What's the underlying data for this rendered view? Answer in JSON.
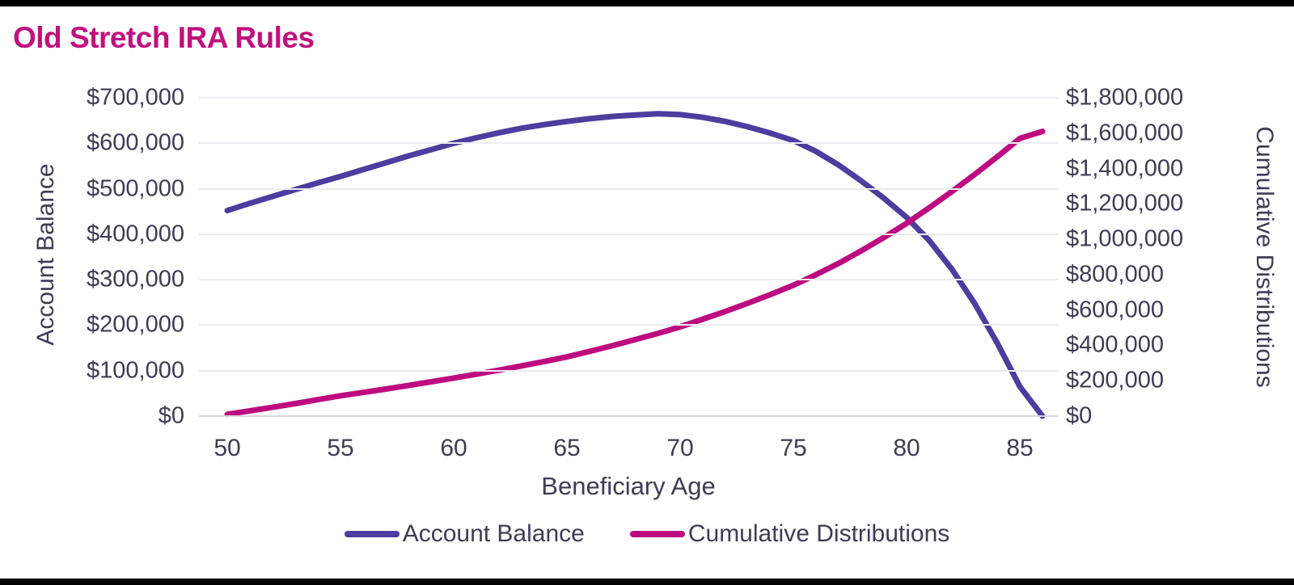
{
  "title": "Old Stretch IRA Rules",
  "colors": {
    "title": "#C0117E",
    "account_balance_line": "#4C3D9E",
    "cumulative_distributions_line": "#BD0C80",
    "axis_text": "#3D3D52",
    "gridline": "#ECEBF1",
    "zero_line": "#D8D8DD",
    "letterbox": "#000000",
    "background": "#FFFFFF"
  },
  "chart_data": {
    "type": "line",
    "title": "Old Stretch IRA Rules",
    "xlabel": "Beneficiary Age",
    "ylabel_left": "Account Balance",
    "ylabel_right": "Cumulative Distributions",
    "grid": "horizontal",
    "legend_position": "bottom",
    "x": [
      50,
      51,
      52,
      53,
      54,
      55,
      56,
      57,
      58,
      59,
      60,
      61,
      62,
      63,
      64,
      65,
      66,
      67,
      68,
      69,
      70,
      71,
      72,
      73,
      74,
      75,
      76,
      77,
      78,
      79,
      80,
      81,
      82,
      83,
      84,
      85,
      86
    ],
    "x_ticks": [
      50,
      55,
      60,
      65,
      70,
      75,
      80,
      85
    ],
    "left_axis": {
      "min": 0,
      "max": 700000,
      "tick_step": 100000,
      "tick_labels": [
        "$0",
        "$100,000",
        "$200,000",
        "$300,000",
        "$400,000",
        "$500,000",
        "$600,000",
        "$700,000"
      ]
    },
    "right_axis": {
      "min": 0,
      "max": 1800000,
      "tick_step": 200000,
      "tick_labels": [
        "$0",
        "$200,000",
        "$400,000",
        "$600,000",
        "$800,000",
        "$1,000,000",
        "$1,200,000",
        "$1,400,000",
        "$1,600,000",
        "$1,800,000"
      ]
    },
    "series": [
      {
        "name": "Account Balance",
        "axis": "left",
        "color": "#4C3D9E",
        "values": [
          452000,
          468000,
          483000,
          498000,
          513000,
          527000,
          542000,
          557000,
          572000,
          586000,
          600000,
          612000,
          623000,
          633000,
          641000,
          648000,
          654000,
          659000,
          662000,
          665000,
          663000,
          657000,
          648000,
          636000,
          622000,
          606000,
          582000,
          552000,
          517000,
          479000,
          437000,
          386000,
          323000,
          248000,
          161000,
          65000,
          0
        ]
      },
      {
        "name": "Cumulative Distributions",
        "axis": "right",
        "color": "#BD0C80",
        "values": [
          10000,
          30000,
          50000,
          71000,
          93000,
          115000,
          134000,
          153000,
          173000,
          194000,
          215000,
          237000,
          260000,
          284000,
          309000,
          335000,
          366000,
          398000,
          432000,
          467000,
          505000,
          548000,
          592000,
          639000,
          688000,
          740000,
          800000,
          864000,
          935000,
          1010000,
          1090000,
          1178000,
          1270000,
          1366000,
          1466000,
          1570000,
          1610000
        ]
      }
    ]
  },
  "legend": {
    "items": [
      {
        "label": "Account Balance",
        "color": "#4C3D9E"
      },
      {
        "label": "Cumulative Distributions",
        "color": "#BD0C80"
      }
    ]
  }
}
